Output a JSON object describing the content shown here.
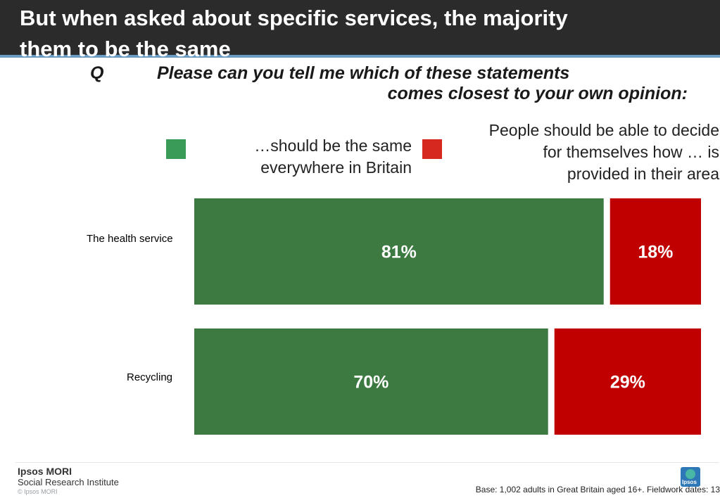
{
  "header": {
    "title_line1": "But when asked about specific services, the majority",
    "title_line2": "them to be the same"
  },
  "question": {
    "marker": "Q",
    "line1": "Please can you tell me which of these statements",
    "line2": "comes closest to your own opinion:"
  },
  "legend": [
    {
      "lines": [
        "…should be the same",
        "everywhere in Britain"
      ],
      "color": "#3a9a58"
    },
    {
      "lines": [
        "People should be able to decide",
        "for themselves how … is",
        "provided in their area"
      ],
      "color": "#d7281f"
    }
  ],
  "chart_data": {
    "type": "bar",
    "orientation": "horizontal",
    "stacked": true,
    "categories": [
      "The health service",
      "Recycling"
    ],
    "series": [
      {
        "name": "…should be the same everywhere in Britain",
        "values": [
          81,
          70
        ],
        "labels": [
          "81%",
          "70%"
        ],
        "color": "#3d7a42"
      },
      {
        "name": "People should be able to decide for themselves how … is provided in their area",
        "values": [
          18,
          29
        ],
        "labels": [
          "18%",
          "29%"
        ],
        "color": "#c00000"
      }
    ],
    "unit": "%",
    "grid": false,
    "legend_position": "top"
  },
  "footer": {
    "logo_name": "Ipsos MORI",
    "logo_sub": "Social Research Institute",
    "copyright": "© Ipsos MORI",
    "badge_text": "Ipsos",
    "base": "Base: 1,002 adults in Great Britain aged 16+. Fieldwork dates: 13"
  }
}
